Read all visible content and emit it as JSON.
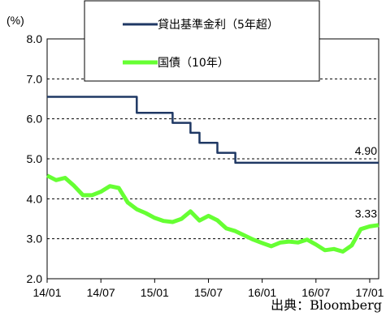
{
  "chart_data": {
    "type": "line",
    "ylabel": "(%)",
    "ylim": [
      2.0,
      8.0
    ],
    "y_ticks": [
      "2.0",
      "3.0",
      "4.0",
      "5.0",
      "6.0",
      "7.0",
      "8.0"
    ],
    "x_ticks": [
      "14/01",
      "14/07",
      "15/01",
      "15/07",
      "16/01",
      "16/07",
      "17/01"
    ],
    "x_range": [
      "2014-01",
      "2017-02"
    ],
    "grid": "horizontal dashed",
    "legend_position": "top",
    "source": "出典：Bloomberg",
    "series": [
      {
        "name": "貸出基準金利（5年超）",
        "color": "#1f3864",
        "style": "step",
        "points": [
          [
            "2014-01",
            6.55
          ],
          [
            "2014-11",
            6.55
          ],
          [
            "2014-11",
            6.15
          ],
          [
            "2015-03",
            6.15
          ],
          [
            "2015-03",
            5.9
          ],
          [
            "2015-05",
            5.9
          ],
          [
            "2015-05",
            5.65
          ],
          [
            "2015-06",
            5.65
          ],
          [
            "2015-06",
            5.4
          ],
          [
            "2015-08",
            5.4
          ],
          [
            "2015-08",
            5.15
          ],
          [
            "2015-10",
            5.15
          ],
          [
            "2015-10",
            4.9
          ],
          [
            "2017-02",
            4.9
          ]
        ],
        "end_label": "4.90"
      },
      {
        "name": "国債（10年）",
        "color": "#66ff33",
        "style": "line",
        "points": [
          [
            "2014-01",
            4.58
          ],
          [
            "2014-02",
            4.5
          ],
          [
            "2014-03",
            4.48
          ],
          [
            "2014-04",
            4.35
          ],
          [
            "2014-05",
            4.1
          ],
          [
            "2014-06",
            4.05
          ],
          [
            "2014-07",
            4.22
          ],
          [
            "2014-08",
            4.3
          ],
          [
            "2014-09",
            4.25
          ],
          [
            "2014-10",
            3.95
          ],
          [
            "2014-11",
            3.7
          ],
          [
            "2014-12",
            3.65
          ],
          [
            "2015-01",
            3.55
          ],
          [
            "2015-02",
            3.4
          ],
          [
            "2015-03",
            3.45
          ],
          [
            "2015-04",
            3.5
          ],
          [
            "2015-05",
            3.65
          ],
          [
            "2015-06",
            3.5
          ],
          [
            "2015-07",
            3.55
          ],
          [
            "2015-08",
            3.45
          ],
          [
            "2015-09",
            3.3
          ],
          [
            "2015-10",
            3.15
          ],
          [
            "2015-11",
            3.1
          ],
          [
            "2015-12",
            3.0
          ],
          [
            "2016-01",
            2.85
          ],
          [
            "2016-02",
            2.85
          ],
          [
            "2016-03",
            2.9
          ],
          [
            "2016-04",
            2.9
          ],
          [
            "2016-05",
            2.95
          ],
          [
            "2016-06",
            2.95
          ],
          [
            "2016-07",
            2.85
          ],
          [
            "2016-08",
            2.75
          ],
          [
            "2016-09",
            2.7
          ],
          [
            "2016-10",
            2.7
          ],
          [
            "2016-11",
            2.85
          ],
          [
            "2016-12",
            3.2
          ],
          [
            "2017-01",
            3.35
          ],
          [
            "2017-02",
            3.33
          ]
        ],
        "end_label": "3.33"
      }
    ]
  }
}
